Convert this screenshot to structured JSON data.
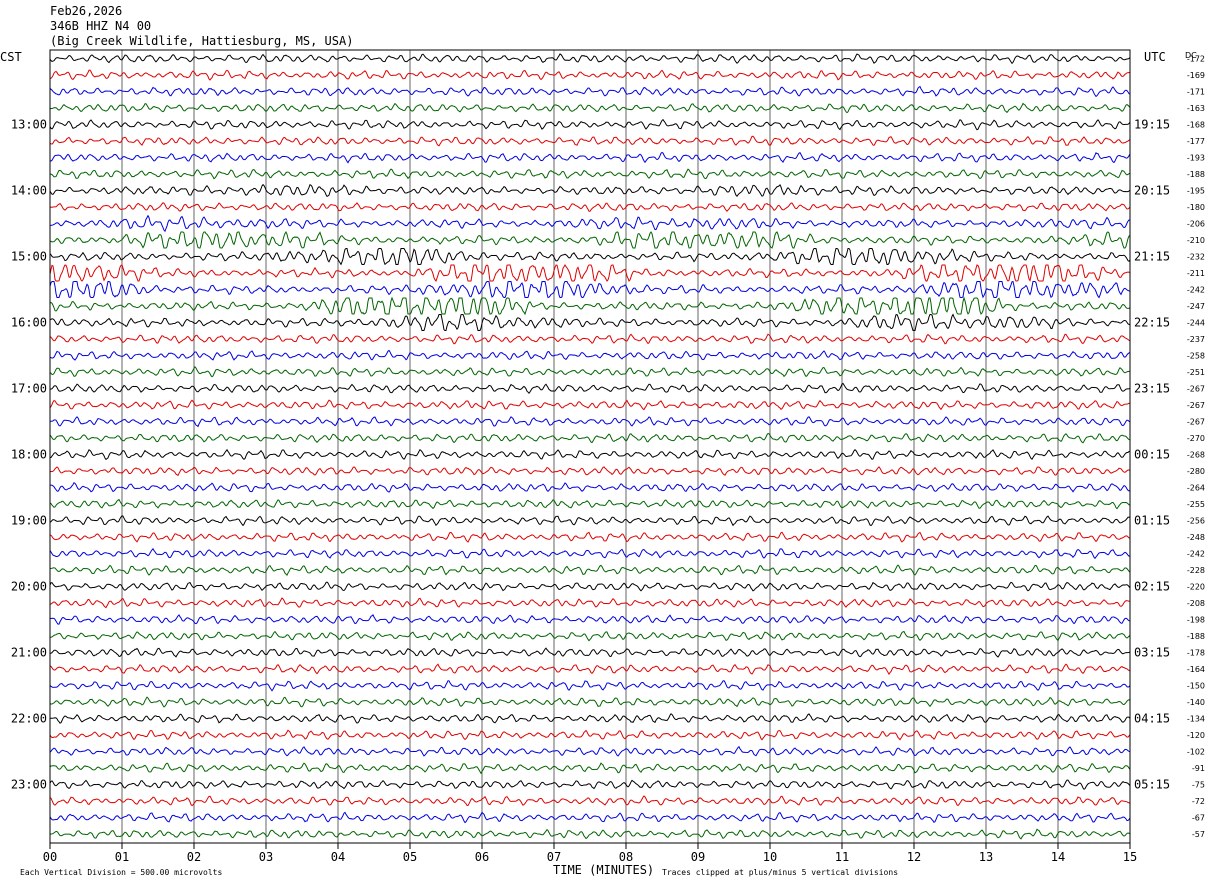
{
  "header": {
    "date": "Feb26,2026",
    "station": "346B HHZ N4 00",
    "location": "(Big Creek Wildlife, Hattiesburg, MS, USA)"
  },
  "left_timezone": "CST",
  "right_timezone": "UTC",
  "dc_label": "DC",
  "footer": {
    "scale_note": "Each Vertical Division =  500.00 microvolts",
    "clip_note": "Traces clipped at plus/minus 5 vertical divisions"
  },
  "colors": {
    "trace_cycle": [
      "#000000",
      "#e00000",
      "#0000e0",
      "#006400"
    ],
    "grid": "#000000",
    "background": "#ffffff"
  },
  "chart_data": {
    "type": "line",
    "title": "",
    "xlabel": "TIME (MINUTES)",
    "ylabel": "",
    "x_ticks": [
      "00",
      "01",
      "02",
      "03",
      "04",
      "05",
      "06",
      "07",
      "08",
      "09",
      "10",
      "11",
      "12",
      "13",
      "14",
      "15"
    ],
    "xlim": [
      0,
      15
    ],
    "traces_per_hour": 4,
    "minutes_per_trace": 15,
    "left_hour_labels": [
      "13:00",
      "14:00",
      "15:00",
      "16:00",
      "17:00",
      "18:00",
      "19:00",
      "20:00",
      "21:00",
      "22:00",
      "23:00"
    ],
    "right_hour_labels": [
      "19:15",
      "20:15",
      "21:15",
      "22:15",
      "23:15",
      "00:15",
      "01:15",
      "02:15",
      "03:15",
      "04:15",
      "05:15"
    ],
    "dc_offsets": [
      -172,
      -169,
      -171,
      -163,
      -168,
      -177,
      -193,
      -188,
      -195,
      -180,
      -206,
      -210,
      -232,
      -211,
      -242,
      -247,
      -244,
      -237,
      -258,
      -251,
      -267,
      -267,
      -267,
      -270,
      -268,
      -280,
      -264,
      -255,
      -256,
      -248,
      -242,
      -228,
      -220,
      -208,
      -198,
      -188,
      -178,
      -164,
      -150,
      -140,
      -134,
      -120,
      -102,
      -91,
      -75,
      -72,
      -67,
      -57
    ],
    "trace_activity": [
      1.0,
      1.0,
      1.0,
      1.0,
      1.0,
      1.0,
      1.0,
      1.1,
      1.3,
      1.2,
      1.4,
      2.2,
      2.2,
      2.6,
      2.4,
      3.0,
      1.8,
      1.0,
      1.0,
      1.0,
      1.0,
      1.0,
      1.0,
      1.0,
      1.0,
      1.0,
      1.0,
      1.0,
      1.0,
      1.0,
      1.0,
      1.0,
      1.0,
      1.0,
      1.0,
      1.0,
      1.0,
      1.0,
      1.0,
      1.0,
      1.0,
      1.0,
      1.0,
      1.0,
      1.0,
      1.0,
      1.0,
      1.0
    ]
  }
}
